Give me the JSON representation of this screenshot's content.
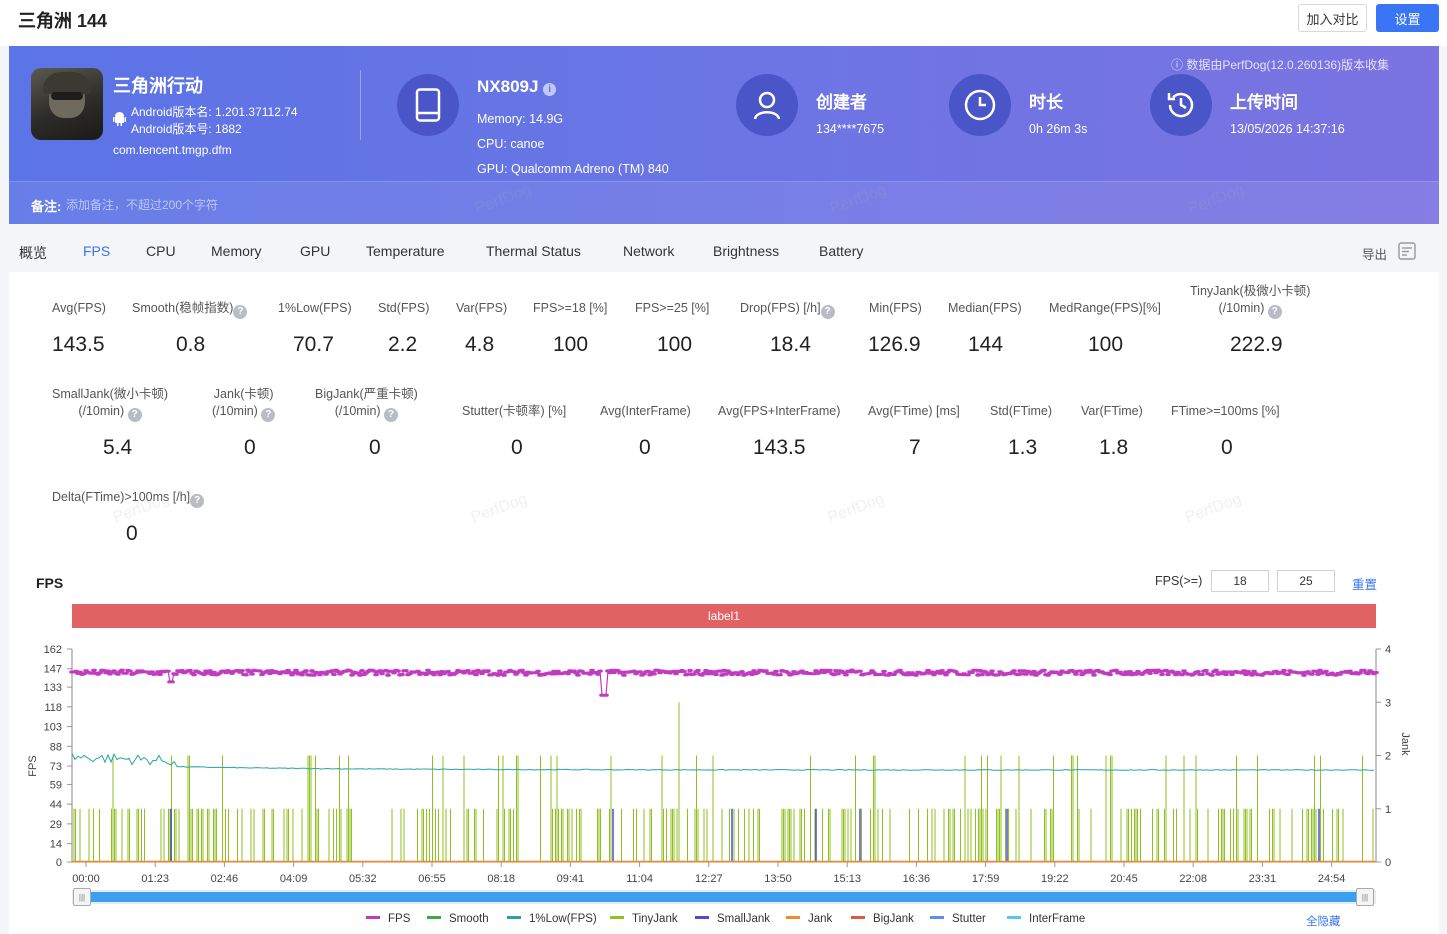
{
  "header": {
    "title": "三角洲 144",
    "compare_btn": "加入对比",
    "settings_btn": "设置"
  },
  "app": {
    "name": "三角洲行动",
    "version_name": "Android版本名: 1.201.37112.74",
    "version_code": "Android版本号: 1882",
    "package": "com.tencent.tmgp.dfm"
  },
  "device": {
    "model": "NX809J",
    "memory": "Memory: 14.9G",
    "cpu": "CPU: canoe",
    "gpu": "GPU: Qualcomm Adreno (TM) 840"
  },
  "creator": {
    "title": "创建者",
    "value": "134****7675"
  },
  "duration": {
    "title": "时长",
    "value": "0h 26m 3s"
  },
  "upload": {
    "title": "上传时间",
    "value": "13/05/2026 14:37:16"
  },
  "data_source_tip": "数据由PerfDog(12.0.260136)版本收集",
  "note": {
    "label": "备注:",
    "placeholder": "添加备注，不超过200个字符"
  },
  "watermark": "PerfDog",
  "tabs": [
    "概览",
    "FPS",
    "CPU",
    "Memory",
    "GPU",
    "Temperature",
    "Thermal Status",
    "Network",
    "Brightness",
    "Battery"
  ],
  "export_label": "导出",
  "metrics_row1": [
    {
      "label": "Avg(FPS)",
      "value": "143.5"
    },
    {
      "label": "Smooth(稳帧指数)",
      "value": "0.8"
    },
    {
      "label": "1%Low(FPS)",
      "value": "70.7"
    },
    {
      "label": "Std(FPS)",
      "value": "2.2"
    },
    {
      "label": "Var(FPS)",
      "value": "4.8"
    },
    {
      "label": "FPS>=18 [%]",
      "value": "100"
    },
    {
      "label": "FPS>=25 [%]",
      "value": "100"
    },
    {
      "label": "Drop(FPS) [/h]",
      "value": "18.4"
    },
    {
      "label": "Min(FPS)",
      "value": "126.9"
    },
    {
      "label": "Median(FPS)",
      "value": "144"
    },
    {
      "label": "MedRange(FPS)[%]",
      "value": "100"
    },
    {
      "label": "TinyJank(极微小卡顿)",
      "label2": "(/10min)",
      "value": "222.9"
    }
  ],
  "metrics_row2": [
    {
      "label": "SmallJank(微小卡顿)",
      "label2": "(/10min)",
      "value": "5.4"
    },
    {
      "label": "Jank(卡顿)",
      "label2": "(/10min)",
      "value": "0"
    },
    {
      "label": "BigJank(严重卡顿)",
      "label2": "(/10min)",
      "value": "0"
    },
    {
      "label": "Stutter(卡顿率) [%]",
      "value": "0"
    },
    {
      "label": "Avg(InterFrame)",
      "value": "0"
    },
    {
      "label": "Avg(FPS+InterFrame)",
      "value": "143.5"
    },
    {
      "label": "Avg(FTime) [ms]",
      "value": "7"
    },
    {
      "label": "Std(FTime)",
      "value": "1.3"
    },
    {
      "label": "Var(FTime)",
      "value": "1.8"
    },
    {
      "label": "FTime>=100ms [%]",
      "value": "0"
    }
  ],
  "metrics_row3": [
    {
      "label": "Delta(FTime)>100ms [/h]",
      "value": "0"
    }
  ],
  "fps_section": {
    "title": "FPS",
    "threshold_label": "FPS(>=)",
    "threshold1": "18",
    "threshold2": "25",
    "reset": "重置",
    "segment_label": "label1",
    "hide_all": "全隐藏"
  },
  "chart_data": {
    "type": "line",
    "ylabel": "FPS",
    "y2label": "Jank",
    "y_ticks": [
      "162",
      "147",
      "133",
      "118",
      "103",
      "88",
      "73",
      "59",
      "44",
      "29",
      "14",
      "0"
    ],
    "y2_ticks": [
      "4",
      "3",
      "2",
      "1",
      "0"
    ],
    "x_ticks": [
      "00:00",
      "01:23",
      "02:46",
      "04:09",
      "05:32",
      "06:55",
      "08:18",
      "09:41",
      "11:04",
      "12:27",
      "13:50",
      "15:13",
      "16:36",
      "17:59",
      "19:22",
      "20:45",
      "22:08",
      "23:31",
      "24:54"
    ],
    "ylim": [
      0,
      162
    ],
    "y2lim": [
      0,
      4
    ],
    "series": [
      {
        "name": "FPS",
        "color": "#c13bc1",
        "typical": 144,
        "min": 126.9
      },
      {
        "name": "Smooth",
        "color": "#3caa4b"
      },
      {
        "name": "1%Low(FPS)",
        "color": "#2aa3a3",
        "start": 78,
        "end": 70
      },
      {
        "name": "TinyJank",
        "color": "#8ec21f"
      },
      {
        "name": "SmallJank",
        "color": "#4b4bd8"
      },
      {
        "name": "Jank",
        "color": "#f08a2c"
      },
      {
        "name": "BigJank",
        "color": "#e05a3a"
      },
      {
        "name": "Stutter",
        "color": "#5b8ff0"
      },
      {
        "name": "InterFrame",
        "color": "#56c9e6"
      }
    ]
  }
}
